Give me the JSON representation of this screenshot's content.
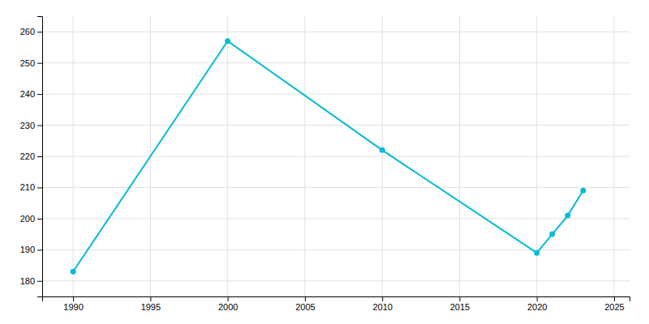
{
  "chart_data": {
    "type": "line",
    "x": [
      1990,
      2000,
      2010,
      2020,
      2021,
      2022,
      2023
    ],
    "values": [
      183,
      257,
      222,
      189,
      195,
      201,
      209
    ],
    "color": "#00BCD4",
    "marker": "circle",
    "xlim": [
      1988,
      2026
    ],
    "ylim": [
      175,
      265
    ],
    "xticks": [
      1990,
      1995,
      2000,
      2005,
      2010,
      2015,
      2020,
      2025
    ],
    "yticks": [
      180,
      190,
      200,
      210,
      220,
      230,
      240,
      250,
      260
    ],
    "grid": true
  }
}
